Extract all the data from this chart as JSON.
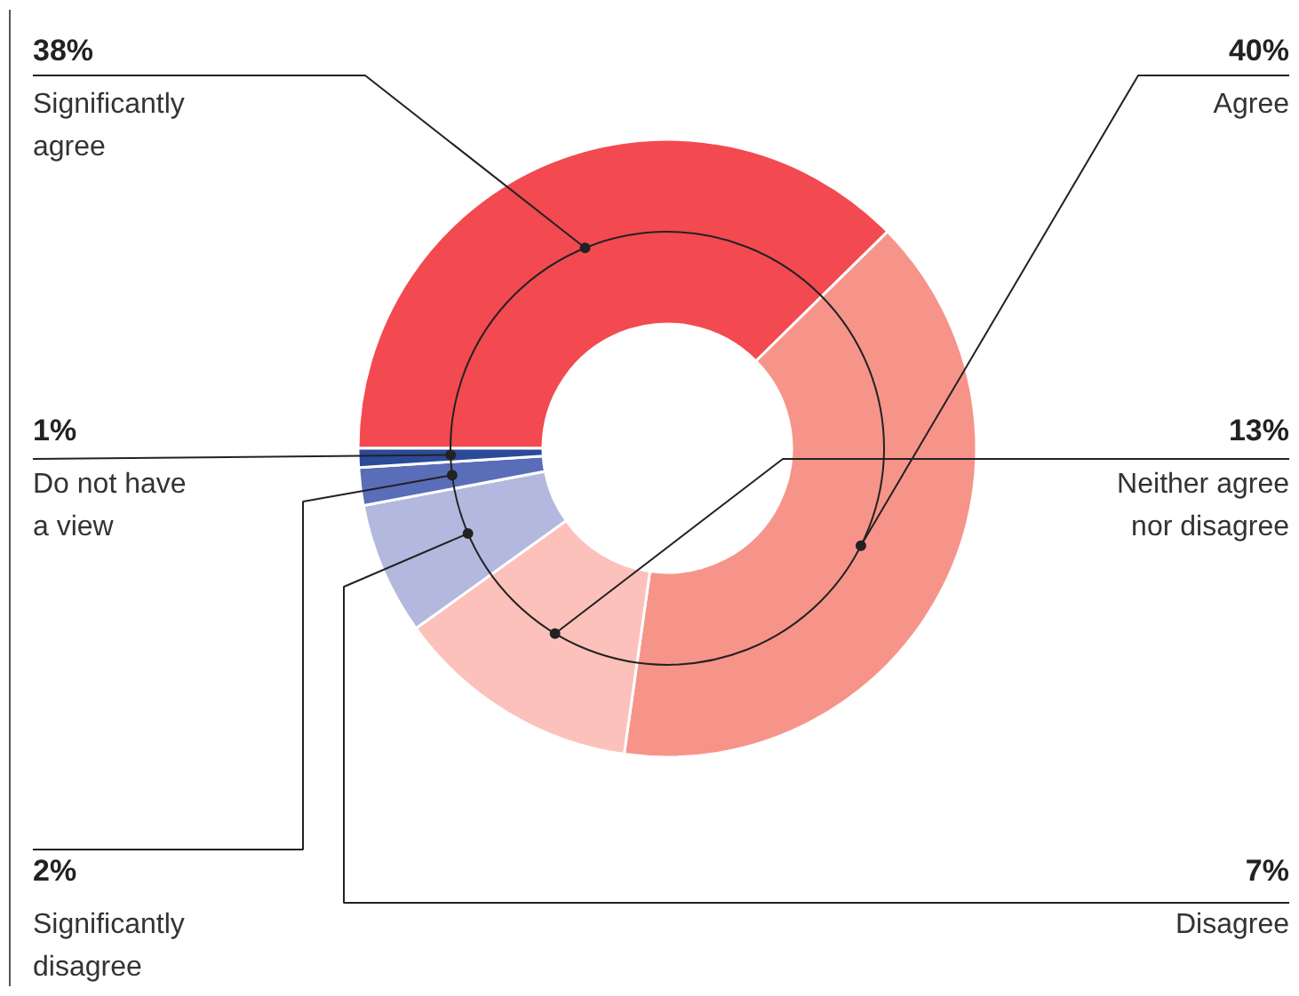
{
  "chart_data": {
    "type": "donut",
    "categories": [
      "Significantly\nagree",
      "Agree",
      "Neither agree\nnor disagree",
      "Disagree",
      "Significantly\ndisagree",
      "Do not have\na view"
    ],
    "values": [
      38,
      40,
      13,
      7,
      2,
      1
    ],
    "colors": [
      "#f24a50",
      "#f7948a",
      "#fcc1bb",
      "#b3b8de",
      "#5a6db8",
      "#2c4a9a"
    ],
    "value_labels": [
      "38%",
      "40%",
      "13%",
      "7%",
      "2%",
      "1%"
    ]
  }
}
